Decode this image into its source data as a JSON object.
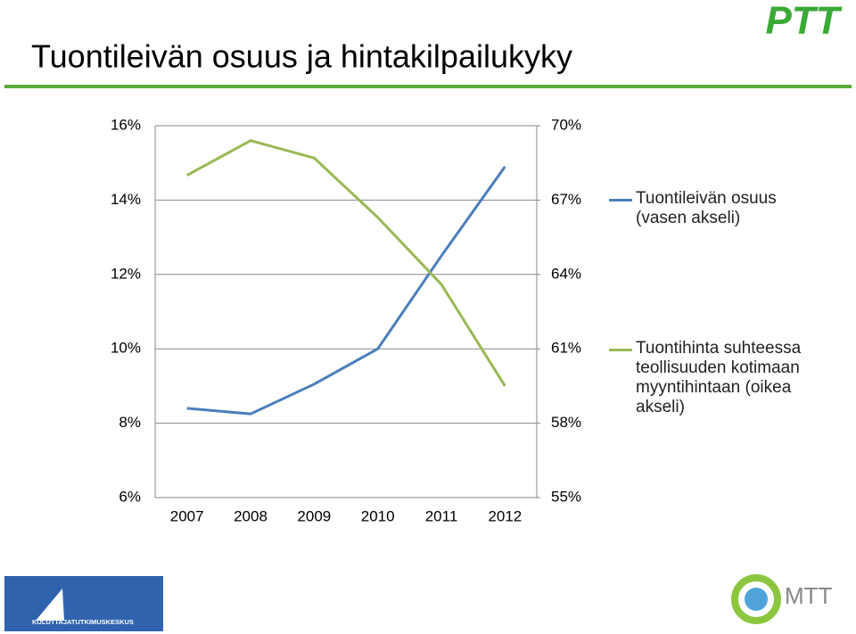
{
  "chart_data": {
    "type": "line",
    "title": "Tuontileivän osuus ja hintakilpailukyky",
    "categories": [
      "2007",
      "2008",
      "2009",
      "2010",
      "2011",
      "2012"
    ],
    "series": [
      {
        "name": "Tuontileivän osuus (vasen akseli)",
        "color": "#4a7ebb",
        "values": [
          8.4,
          8.25,
          9.05,
          10.0,
          12.5,
          14.9
        ]
      },
      {
        "name": "Tuontihinta suhteessa teollisuuden kotimaan myyntihintaan (oikea akseli)",
        "color": "#98b954",
        "axis": "y2",
        "values": [
          68.0,
          69.4,
          68.7,
          66.3,
          63.6,
          59.5
        ]
      }
    ],
    "ylim": [
      6,
      16
    ],
    "yticks": [
      {
        "value": 6,
        "label": "6%"
      },
      {
        "value": 8,
        "label": "8%"
      },
      {
        "value": 10,
        "label": "10%"
      },
      {
        "value": 12,
        "label": "12%"
      },
      {
        "value": 14,
        "label": "14%"
      },
      {
        "value": 16,
        "label": "16%"
      }
    ],
    "y2lim": [
      55,
      70
    ],
    "y2ticks": [
      {
        "value": 55,
        "label": "55%"
      },
      {
        "value": 58,
        "label": "58%"
      },
      {
        "value": 61,
        "label": "61%"
      },
      {
        "value": 64,
        "label": "64%"
      },
      {
        "value": 67,
        "label": "67%"
      },
      {
        "value": 70,
        "label": "70%"
      }
    ],
    "grid": true,
    "legend": "right"
  },
  "logos": {
    "top_right": "PTT",
    "bottom_left": "KULUTTAJATUTKIMUSKESKUS",
    "bottom_right": "MTT"
  }
}
